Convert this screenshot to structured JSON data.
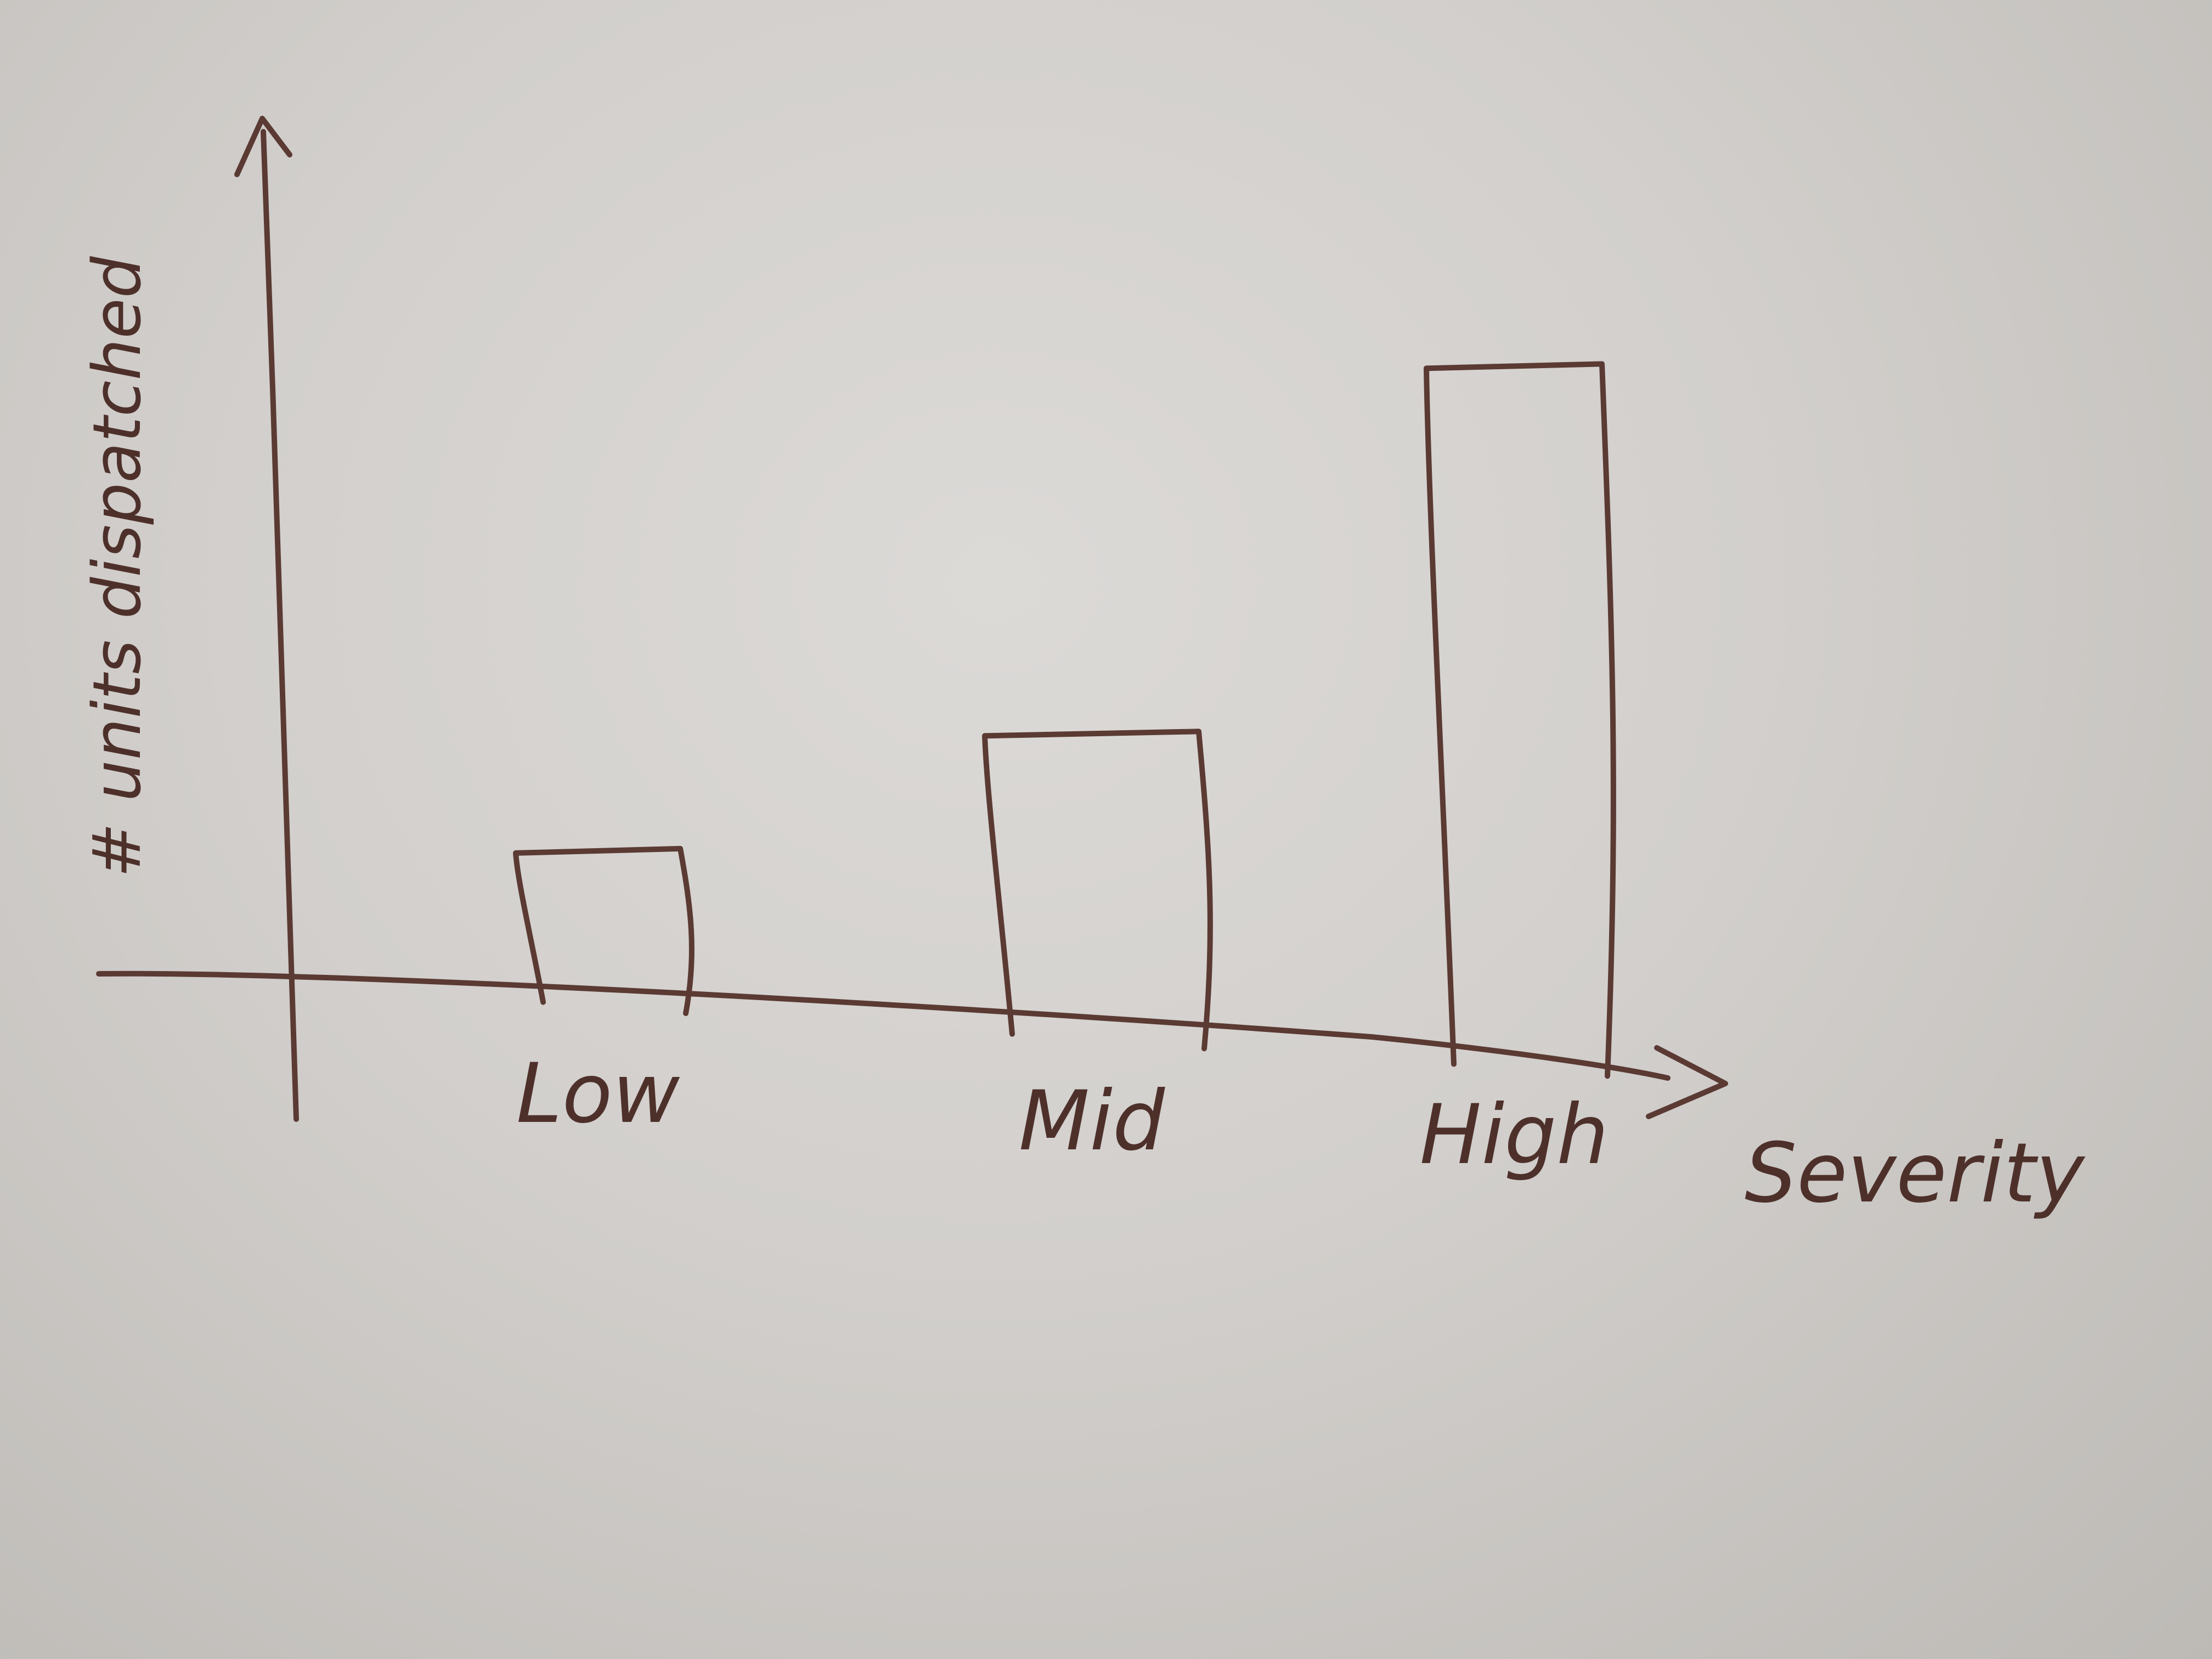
{
  "chart_data": {
    "type": "bar",
    "categories": [
      "Low",
      "Mid",
      "High"
    ],
    "values": [
      3,
      6,
      14
    ],
    "xlabel": "Severity",
    "ylabel": "# units dispatched",
    "ylim": [
      0,
      17
    ],
    "grid": false,
    "legend": "none"
  },
  "colors": {
    "ink": "#5b3a34",
    "board": "#d6d3d0"
  }
}
